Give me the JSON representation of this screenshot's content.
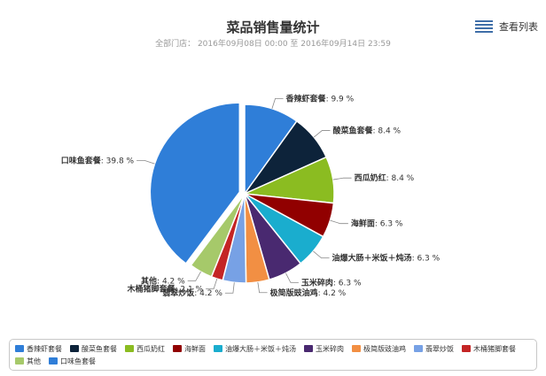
{
  "header": {
    "title": "菜品销售量统计",
    "subtitle": "全部门店： 2016年09月08日 00:00 至 2016年09月14日 23:59",
    "view_list_label": "查看列表"
  },
  "colors": {
    "title": "#333333",
    "subtitle": "#999999",
    "legend_border": "#c8c8c8",
    "leader_line": "#888888",
    "view_list_icon": "#3f6ea8"
  },
  "chart_data": {
    "type": "pie",
    "title": "菜品销售量统计",
    "subtitle": "全部门店： 2016年09月08日 00:00 至 2016年09月14日 23:59",
    "value_suffix": " %",
    "legend_position": "bottom",
    "series": [
      {
        "name": "香辣虾套餐",
        "value": 9.9,
        "color": "#2f7ed8"
      },
      {
        "name": "酸菜鱼套餐",
        "value": 8.4,
        "color": "#0d233a"
      },
      {
        "name": "西瓜奶红",
        "value": 8.4,
        "color": "#8bbc21"
      },
      {
        "name": "海鲜面",
        "value": 6.3,
        "color": "#910000"
      },
      {
        "name": "油爆大肠＋米饭＋炖汤",
        "value": 6.3,
        "color": "#1aadce"
      },
      {
        "name": "玉米碎肉",
        "value": 6.3,
        "color": "#492970"
      },
      {
        "name": "极简版豉油鸡",
        "value": 4.2,
        "color": "#f28f43"
      },
      {
        "name": "翡翠炒饭",
        "value": 4.2,
        "color": "#77a1e5"
      },
      {
        "name": "木桶猪脚套餐",
        "value": 2.1,
        "color": "#c42525"
      },
      {
        "name": "其他",
        "value": 4.2,
        "color": "#a6c96a"
      },
      {
        "name": "口味鱼套餐",
        "value": 39.8,
        "color": "#2f7ed8"
      }
    ]
  }
}
